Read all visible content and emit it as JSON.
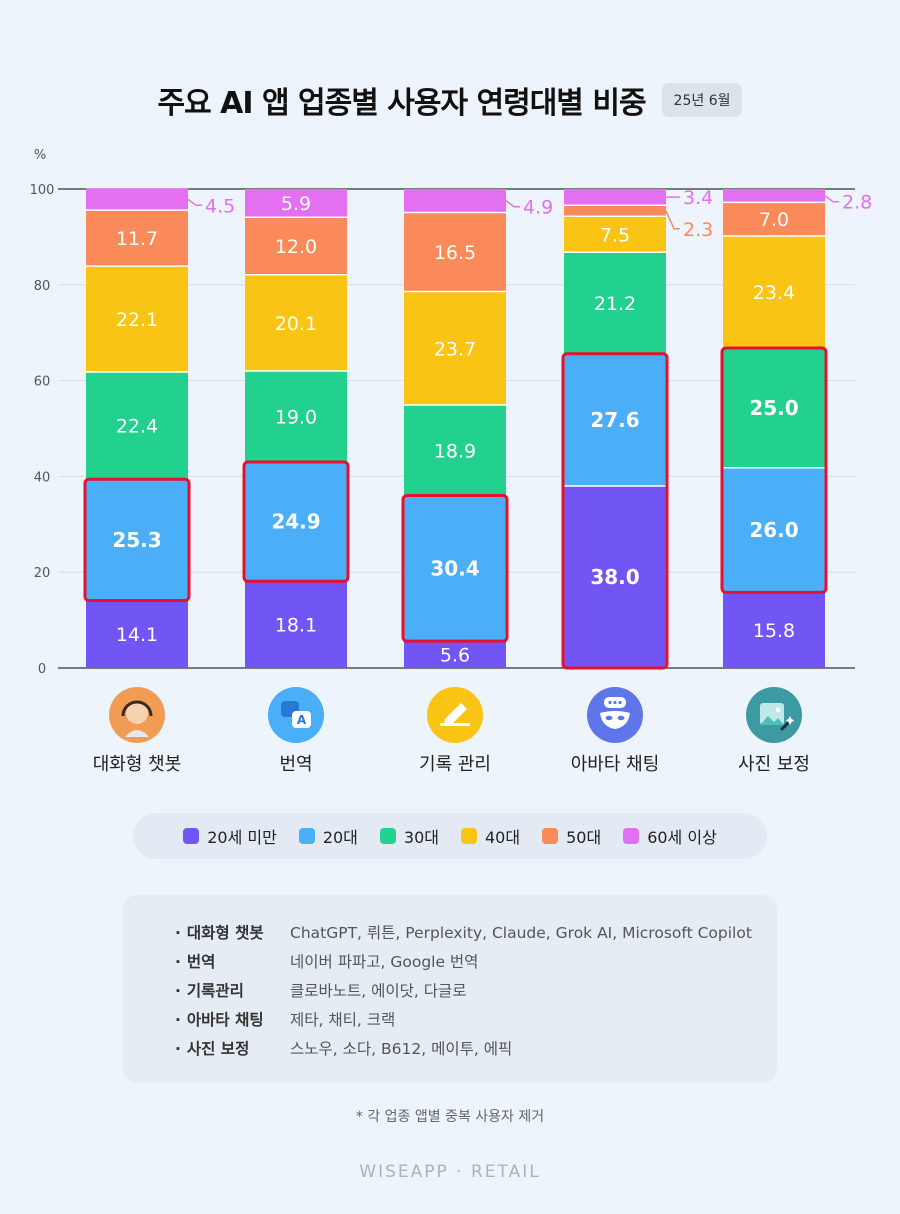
{
  "header": {
    "title": "주요 AI 앱 업종별 사용자 연령대별 비중",
    "date_badge": "25년 6월"
  },
  "colors": {
    "under20": "#7256f5",
    "20s": "#4aaef8",
    "30s": "#22d18e",
    "40s": "#f9c413",
    "50s": "#fb8a5b",
    "60plus": "#e46ff0",
    "highlight": "#e8112d"
  },
  "chart_data": {
    "type": "bar",
    "stacked": true,
    "unit_label": "%",
    "ylim": [
      0,
      100
    ],
    "yticks": [
      "0",
      "20",
      "40",
      "60",
      "80",
      "100"
    ],
    "grid": true,
    "legend_position": "bottom",
    "categories": [
      "대화형 챗봇",
      "번역",
      "기록 관리",
      "아바타 채팅",
      "사진 보정"
    ],
    "category_icons": [
      "headset-agent-icon",
      "translate-icon",
      "pencil-note-icon",
      "masked-chat-icon",
      "photo-edit-icon"
    ],
    "icon_colors": [
      "#f19c55",
      "#4aaef8",
      "#f9c413",
      "#5f75ea",
      "#3c9aa2"
    ],
    "series": [
      {
        "name": "20세 미만",
        "color_key": "under20",
        "values": [
          14.1,
          18.1,
          5.6,
          38.0,
          15.8
        ],
        "labels": [
          "14.1",
          "18.1",
          "5.6",
          "38.0",
          "15.8"
        ]
      },
      {
        "name": "20대",
        "color_key": "20s",
        "values": [
          25.3,
          24.9,
          30.4,
          27.6,
          26.0
        ],
        "labels": [
          "25.3",
          "24.9",
          "30.4",
          "27.6",
          "26.0"
        ]
      },
      {
        "name": "30대",
        "color_key": "30s",
        "values": [
          22.4,
          19.0,
          18.9,
          21.2,
          25.0
        ],
        "labels": [
          "22.4",
          "19.0",
          "18.9",
          "21.2",
          "25.0"
        ]
      },
      {
        "name": "40대",
        "color_key": "40s",
        "values": [
          22.1,
          20.1,
          23.7,
          7.5,
          23.4
        ],
        "labels": [
          "22.1",
          "20.1",
          "23.7",
          "7.5",
          "23.4"
        ]
      },
      {
        "name": "50대",
        "color_key": "50s",
        "values": [
          11.7,
          12.0,
          16.5,
          2.3,
          7.0
        ],
        "labels": [
          "11.7",
          "12.0",
          "16.5",
          "2.3",
          "7.0"
        ]
      },
      {
        "name": "60세 이상",
        "color_key": "60plus",
        "values": [
          4.5,
          5.9,
          4.9,
          3.4,
          2.8
        ],
        "labels": [
          "4.5",
          "5.9",
          "4.9",
          "3.4",
          "2.8"
        ]
      }
    ],
    "highlights": [
      {
        "category": 0,
        "series": [
          1
        ]
      },
      {
        "category": 1,
        "series": [
          1
        ]
      },
      {
        "category": 2,
        "series": [
          1
        ]
      },
      {
        "category": 3,
        "series": [
          0,
          1
        ]
      },
      {
        "category": 4,
        "series": [
          1,
          2
        ]
      }
    ],
    "bold_labels": [
      [
        0,
        1
      ],
      [
        1,
        1
      ],
      [
        2,
        1
      ],
      [
        3,
        0
      ],
      [
        3,
        1
      ],
      [
        4,
        1
      ],
      [
        4,
        2
      ]
    ],
    "outside_labels": [
      [
        0,
        5
      ],
      [
        2,
        5
      ],
      [
        3,
        4
      ],
      [
        3,
        5
      ],
      [
        4,
        5
      ]
    ]
  },
  "apps": [
    {
      "category": "대화형 챗봇",
      "list": "ChatGPT, 뤼튼, Perplexity, Claude, Grok AI, Microsoft Copilot"
    },
    {
      "category": "번역",
      "list": "네이버 파파고, Google 번역"
    },
    {
      "category": "기록관리",
      "list": "클로바노트, 에이닷, 다글로"
    },
    {
      "category": "아바타 채팅",
      "list": "제타, 채티, 크랙"
    },
    {
      "category": "사진 보정",
      "list": "스노우, 소다, B612, 메이투, 에픽"
    }
  ],
  "footnote": "* 각 업종 앱별 중복 사용자 제거",
  "brand": "WISEAPP · RETAIL"
}
